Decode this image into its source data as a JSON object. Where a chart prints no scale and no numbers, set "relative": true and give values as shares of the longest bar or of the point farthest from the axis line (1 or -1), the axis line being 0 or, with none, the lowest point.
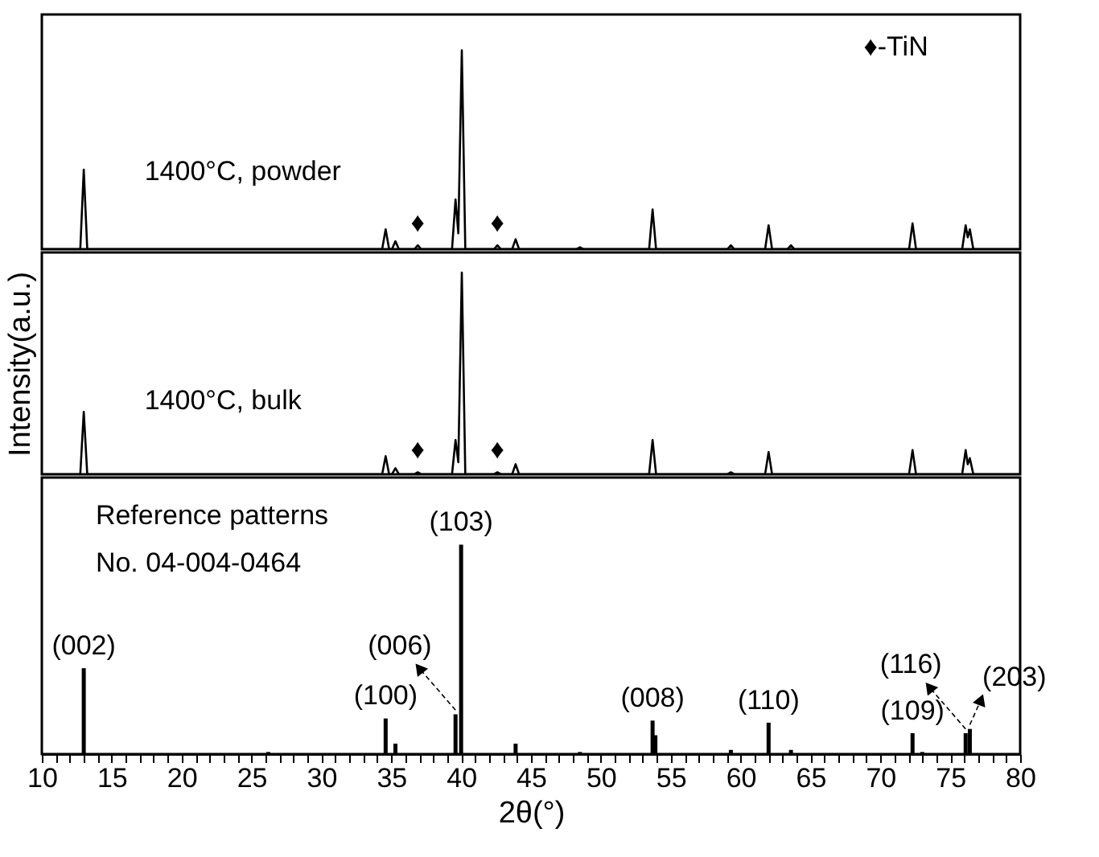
{
  "chart_data": [
    {
      "type": "line",
      "relative": true,
      "tick_labels": false,
      "xlim": [
        10,
        80
      ],
      "line_style": "solid",
      "annotations": [
        "♦-TiN",
        {
          "text": "♦",
          "x": 36.9,
          "y": 0.02
        },
        {
          "text": "♦",
          "x": 42.6,
          "y": 0.02
        }
      ],
      "series": [
        {
          "name": "1400°C, powder",
          "color": "#000000",
          "x": [
            10,
            12.75,
            13.0,
            13.25,
            34.35,
            34.6,
            34.85,
            35.05,
            35.3,
            35.55,
            36.65,
            36.9,
            37.15,
            39.35,
            39.6,
            39.8,
            40.05,
            40.3,
            42.35,
            42.6,
            42.85,
            43.65,
            43.9,
            44.15,
            48.25,
            48.5,
            48.75,
            53.45,
            53.7,
            53.95,
            59.05,
            59.3,
            59.55,
            61.75,
            62.0,
            62.25,
            63.35,
            63.6,
            63.85,
            72.05,
            72.3,
            72.55,
            75.85,
            76.1,
            76.25,
            76.4,
            76.65,
            80
          ],
          "values": [
            0,
            0,
            0.4,
            0,
            0,
            0.1,
            0,
            0,
            0.04,
            0,
            0,
            0.02,
            0,
            0,
            0.25,
            0.08,
            1,
            0,
            0,
            0.02,
            0,
            0,
            0.05,
            0,
            0,
            0.01,
            0,
            0,
            0.2,
            0,
            0,
            0.02,
            0,
            0,
            0.12,
            0,
            0,
            0.02,
            0,
            0,
            0.13,
            0,
            0,
            0.12,
            0.06,
            0.1,
            0,
            0
          ]
        }
      ]
    },
    {
      "type": "line",
      "relative": true,
      "tick_labels": false,
      "xlim": [
        10,
        80
      ],
      "ylabel": "Intensity(a.u.)",
      "line_style": "solid",
      "annotations": [
        {
          "text": "♦",
          "x": 36.9,
          "y": 0.01
        },
        {
          "text": "♦",
          "x": 42.6,
          "y": 0.01
        }
      ],
      "series": [
        {
          "name": "1400°C, bulk",
          "color": "#000000",
          "x": [
            10,
            12.75,
            13.0,
            13.25,
            34.35,
            34.6,
            34.85,
            35.05,
            35.3,
            35.55,
            36.65,
            36.9,
            37.15,
            39.35,
            39.6,
            39.8,
            40.05,
            40.3,
            42.35,
            42.6,
            42.85,
            43.65,
            43.9,
            44.15,
            53.45,
            53.7,
            53.95,
            59.05,
            59.3,
            59.55,
            61.75,
            62.0,
            62.25,
            72.05,
            72.3,
            72.55,
            75.85,
            76.1,
            76.25,
            76.4,
            76.65,
            80
          ],
          "values": [
            0,
            0,
            0.31,
            0,
            0,
            0.09,
            0,
            0,
            0.03,
            0,
            0,
            0.01,
            0,
            0,
            0.17,
            0.06,
            1,
            0,
            0,
            0.01,
            0,
            0,
            0.05,
            0,
            0,
            0.17,
            0,
            0,
            0.01,
            0,
            0,
            0.11,
            0,
            0,
            0.12,
            0,
            0,
            0.12,
            0.05,
            0.08,
            0,
            0
          ]
        }
      ]
    },
    {
      "type": "bar",
      "relative": true,
      "xlim": [
        10,
        80
      ],
      "xlabel": "2θ(°)",
      "tick_labels": "x",
      "xticks": [
        10,
        {
          "value": 11,
          "label": null
        },
        {
          "value": 12,
          "label": null
        },
        {
          "value": 13,
          "label": null
        },
        {
          "value": 14,
          "label": null
        },
        15,
        {
          "value": 16,
          "label": null
        },
        {
          "value": 17,
          "label": null
        },
        {
          "value": 18,
          "label": null
        },
        {
          "value": 19,
          "label": null
        },
        20,
        {
          "value": 21,
          "label": null
        },
        {
          "value": 22,
          "label": null
        },
        {
          "value": 23,
          "label": null
        },
        {
          "value": 24,
          "label": null
        },
        25,
        {
          "value": 26,
          "label": null
        },
        {
          "value": 27,
          "label": null
        },
        {
          "value": 28,
          "label": null
        },
        {
          "value": 29,
          "label": null
        },
        30,
        {
          "value": 31,
          "label": null
        },
        {
          "value": 32,
          "label": null
        },
        {
          "value": 33,
          "label": null
        },
        {
          "value": 34,
          "label": null
        },
        35,
        {
          "value": 36,
          "label": null
        },
        {
          "value": 37,
          "label": null
        },
        {
          "value": 38,
          "label": null
        },
        {
          "value": 39,
          "label": null
        },
        40,
        {
          "value": 41,
          "label": null
        },
        {
          "value": 42,
          "label": null
        },
        {
          "value": 43,
          "label": null
        },
        {
          "value": 44,
          "label": null
        },
        45,
        {
          "value": 46,
          "label": null
        },
        {
          "value": 47,
          "label": null
        },
        {
          "value": 48,
          "label": null
        },
        {
          "value": 49,
          "label": null
        },
        50,
        {
          "value": 51,
          "label": null
        },
        {
          "value": 52,
          "label": null
        },
        {
          "value": 53,
          "label": null
        },
        {
          "value": 54,
          "label": null
        },
        55,
        {
          "value": 56,
          "label": null
        },
        {
          "value": 57,
          "label": null
        },
        {
          "value": 58,
          "label": null
        },
        {
          "value": 59,
          "label": null
        },
        60,
        {
          "value": 61,
          "label": null
        },
        {
          "value": 62,
          "label": null
        },
        {
          "value": 63,
          "label": null
        },
        {
          "value": 64,
          "label": null
        },
        65,
        {
          "value": 66,
          "label": null
        },
        {
          "value": 67,
          "label": null
        },
        {
          "value": 68,
          "label": null
        },
        {
          "value": 69,
          "label": null
        },
        70,
        {
          "value": 71,
          "label": null
        },
        {
          "value": 72,
          "label": null
        },
        {
          "value": 73,
          "label": null
        },
        {
          "value": 74,
          "label": null
        },
        75,
        {
          "value": 76,
          "label": null
        },
        {
          "value": 77,
          "label": null
        },
        {
          "value": 78,
          "label": null
        },
        {
          "value": 79,
          "label": null
        },
        80
      ],
      "x": [
        13.0,
        26.2,
        34.6,
        35.3,
        39.6,
        40.0,
        43.9,
        48.5,
        53.7,
        53.9,
        59.3,
        62.0,
        63.6,
        72.3,
        73.0,
        76.1,
        76.4
      ],
      "values": [
        0.41,
        0.01,
        0.17,
        0.05,
        0.19,
        1,
        0.05,
        0.01,
        0.16,
        0.09,
        0.02,
        0.15,
        0.02,
        0.1,
        0.01,
        0.1,
        0.12
      ],
      "color": "#000000",
      "annotations": [
        "Reference patterns",
        "No. 04-004-0464",
        {
          "text": "(002)",
          "x": 13.0,
          "y": 0.41
        },
        {
          "text": "(100)",
          "x": 34.6,
          "y": 0.17
        },
        {
          "text": "(006)",
          "x": 39.6,
          "y": 0.19
        },
        {
          "text": "(103)",
          "x": 40.0,
          "y": 1
        },
        {
          "text": "(008)",
          "x": 53.7,
          "y": 0.16
        },
        {
          "text": "(110)",
          "x": 62.0,
          "y": 0.15
        },
        {
          "text": "(109)",
          "x": 72.3,
          "y": 0.1
        },
        {
          "text": "(116)",
          "x": 76.1,
          "y": 0.1
        },
        {
          "text": "(203)",
          "x": 76.4,
          "y": 0.12
        }
      ]
    }
  ]
}
